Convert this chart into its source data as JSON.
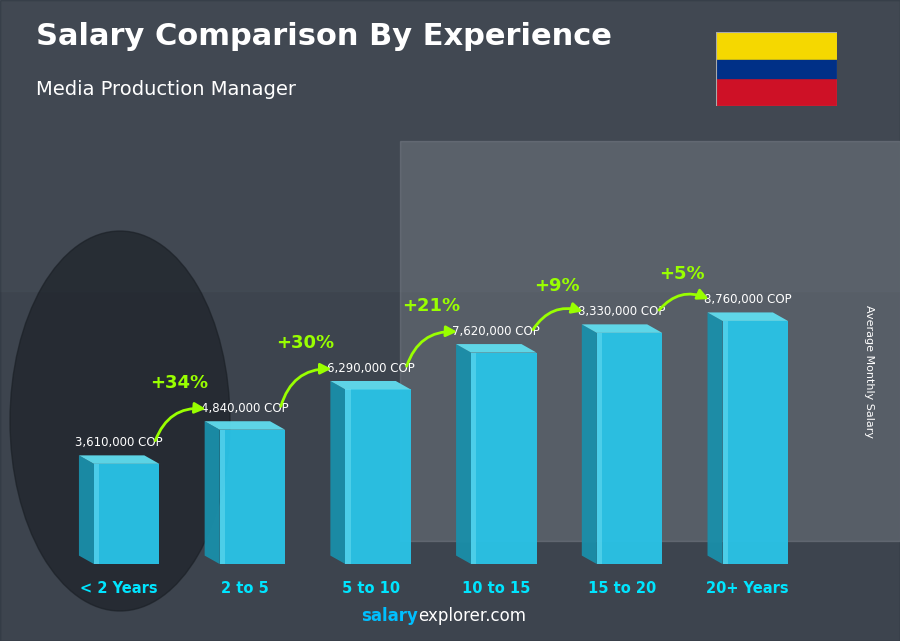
{
  "title": "Salary Comparison By Experience",
  "subtitle": "Media Production Manager",
  "categories": [
    "< 2 Years",
    "2 to 5",
    "5 to 10",
    "10 to 15",
    "15 to 20",
    "20+ Years"
  ],
  "values": [
    3610000,
    4840000,
    6290000,
    7620000,
    8330000,
    8760000
  ],
  "labels": [
    "3,610,000 COP",
    "4,840,000 COP",
    "6,290,000 COP",
    "7,620,000 COP",
    "8,330,000 COP",
    "8,760,000 COP"
  ],
  "pct_changes": [
    "+34%",
    "+30%",
    "+21%",
    "+9%",
    "+5%"
  ],
  "bar_face_color": "#29C4E8",
  "bar_left_color": "#1A8FAA",
  "bar_top_color": "#60DDEF",
  "bar_highlight_color": "#80E8F8",
  "bg_color": "#636B72",
  "overlay_color": [
    0.15,
    0.18,
    0.22,
    0.72
  ],
  "title_color": "#FFFFFF",
  "subtitle_color": "#FFFFFF",
  "label_color": "#FFFFFF",
  "pct_color": "#99FF00",
  "xticklabel_color": "#00E5FF",
  "ylabel_text": "Average Monthly Salary",
  "footer_salary_color": "#00BFFF",
  "footer_rest_color": "#FFFFFF",
  "figsize": [
    9.0,
    6.41
  ],
  "dpi": 100,
  "flag_yellow": "#F5D800",
  "flag_blue": "#003087",
  "flag_red": "#CE1126"
}
